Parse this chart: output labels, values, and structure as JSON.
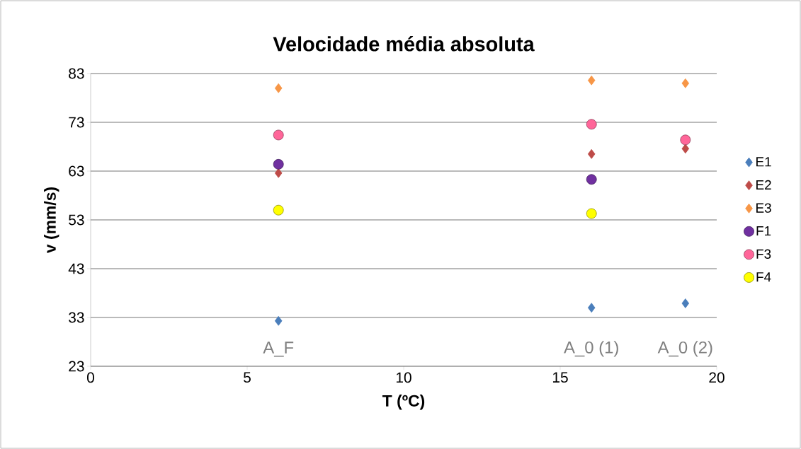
{
  "chart_data": {
    "type": "scatter",
    "title": "Velocidade média absoluta",
    "xlabel": "T (ºC)",
    "ylabel": "v (mm/s)",
    "xlim": [
      0,
      20
    ],
    "xticks": [
      0,
      5,
      10,
      15,
      20
    ],
    "ylim": [
      23,
      83
    ],
    "yticks": [
      23,
      33,
      43,
      53,
      63,
      73,
      83
    ],
    "grid": "y",
    "legend": "right",
    "series": [
      {
        "name": "E1",
        "color": "#4a7ebb",
        "marker": "diamond",
        "x": [
          6,
          16,
          19
        ],
        "values": [
          32.3,
          35.0,
          35.9
        ]
      },
      {
        "name": "E2",
        "color": "#be4b48",
        "marker": "diamond",
        "x": [
          6,
          16,
          19
        ],
        "values": [
          62.6,
          66.5,
          67.6
        ]
      },
      {
        "name": "E3",
        "color": "#f79646",
        "marker": "diamond",
        "x": [
          6,
          16,
          19
        ],
        "values": [
          80.0,
          81.6,
          81.0
        ]
      },
      {
        "name": "F1",
        "color": "#7030a0",
        "marker": "circle",
        "x": [
          6,
          16
        ],
        "values": [
          64.4,
          61.3
        ]
      },
      {
        "name": "F3",
        "color": "#ff6699",
        "marker": "circle",
        "x": [
          6,
          16,
          19
        ],
        "values": [
          70.4,
          72.6,
          69.4
        ]
      },
      {
        "name": "F4",
        "color": "#ffff00",
        "marker": "circle",
        "x": [
          6,
          16
        ],
        "values": [
          55.0,
          54.3
        ]
      }
    ],
    "annotations": [
      "A_F",
      "A_0 (1)",
      "A_0 (2)"
    ]
  }
}
